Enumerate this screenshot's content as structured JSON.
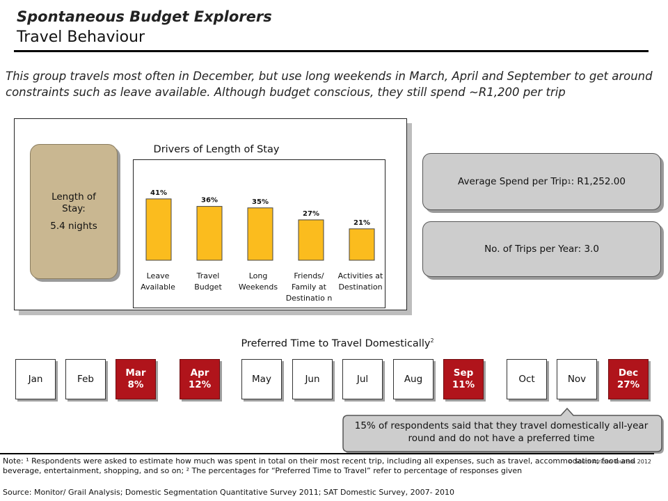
{
  "header": {
    "title": "Spontaneous Budget Explorers",
    "subtitle": "Travel Behaviour"
  },
  "intro": {
    "text": "This group travels most often in December, but use long weekends in March, April and September to get around constraints such as leave available. Although budget conscious, they still spend ~R1,200 per trip"
  },
  "stay": {
    "label": "Length of Stay:",
    "value": "5.4 nights"
  },
  "chart_data": {
    "type": "bar",
    "title": "Drivers of Length of Stay",
    "categories": [
      "Leave Available",
      "Travel Budget",
      "Long Weekends",
      "Friends/ Family at Destination",
      "Activities at Destination"
    ],
    "values": [
      41,
      36,
      35,
      27,
      21
    ],
    "value_labels": [
      "41%",
      "36%",
      "35%",
      "27%",
      "21%"
    ],
    "ylim": [
      0,
      50
    ],
    "bar_color": "#fbbc1e"
  },
  "chart_labels": {
    "c0": "Leave Available",
    "c1": "Travel Budget",
    "c2": "Long Weekends",
    "c3": "Friends/ Family at Destinatio n",
    "c4": "Activities at Destination"
  },
  "spend": {
    "label": "Average Spend per Trip",
    "footnote": "1",
    "value": ": R1,252.00"
  },
  "trips": {
    "text": "No. of Trips per Year: 3.0"
  },
  "months": {
    "title": "Preferred Time to Travel Domestically",
    "title_footnote": "2",
    "items": [
      {
        "name": "Jan",
        "pct": ""
      },
      {
        "name": "Feb",
        "pct": ""
      },
      {
        "name": "Mar",
        "pct": "8%"
      },
      {
        "name": "Apr",
        "pct": "12%"
      },
      {
        "name": "May",
        "pct": ""
      },
      {
        "name": "Jun",
        "pct": ""
      },
      {
        "name": "Jul",
        "pct": ""
      },
      {
        "name": "Aug",
        "pct": ""
      },
      {
        "name": "Sep",
        "pct": "11%"
      },
      {
        "name": "Oct",
        "pct": ""
      },
      {
        "name": "Nov",
        "pct": ""
      },
      {
        "name": "Dec",
        "pct": "27%"
      }
    ],
    "highlight_color": "#b0141b"
  },
  "callout": {
    "text": "15% of respondents said that they travel domestically all-year round and do not have a preferred time"
  },
  "footer": {
    "copyright": "© South African Tourism 2012",
    "note": "Note: ¹ Respondents were asked to estimate how much was spent in total on their most recent trip, including all expenses, such as travel, accommodation, food and beverage, entertainment, shopping, and so on; ² The percentages for “Preferred Time to Travel” refer to percentage of responses given",
    "source": "Source: Monitor/ Grail Analysis; Domestic Segmentation Quantitative Survey 2011; SAT Domestic Survey, 2007- 2010"
  }
}
